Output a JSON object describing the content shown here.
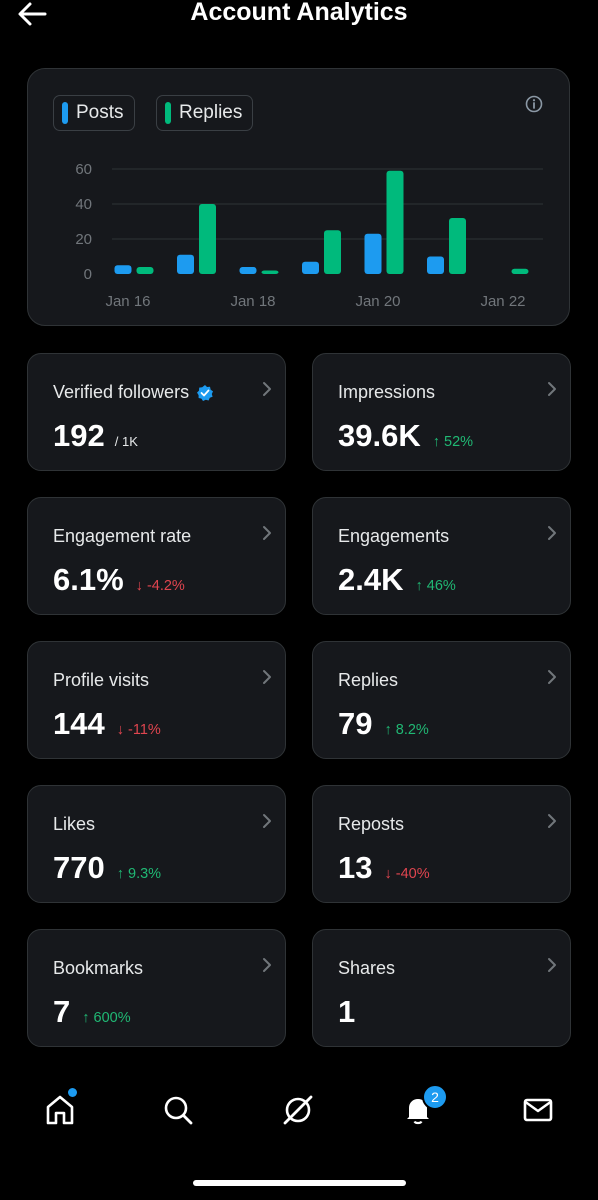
{
  "header": {
    "title": "Account Analytics"
  },
  "legend": [
    {
      "label": "Posts",
      "color": "#1d9bf0"
    },
    {
      "label": "Replies",
      "color": "#00ba7c"
    }
  ],
  "chart_data": {
    "type": "bar",
    "categories": [
      "Jan 16",
      "Jan 17",
      "Jan 18",
      "Jan 19",
      "Jan 20",
      "Jan 21",
      "Jan 22"
    ],
    "tick_labels_x": [
      "Jan 16",
      "Jan 18",
      "Jan 20",
      "Jan 22"
    ],
    "yticks": [
      0,
      20,
      40,
      60
    ],
    "ylim": [
      0,
      60
    ],
    "grid": true,
    "series": [
      {
        "name": "Posts",
        "color": "#1d9bf0",
        "values": [
          5,
          11,
          4,
          7,
          23,
          10,
          0
        ]
      },
      {
        "name": "Replies",
        "color": "#00ba7c",
        "values": [
          4,
          40,
          2,
          25,
          59,
          32,
          3
        ]
      }
    ]
  },
  "stats": [
    {
      "label": "Verified followers",
      "value": "192",
      "sub": "/ 1K",
      "verified": true
    },
    {
      "label": "Impressions",
      "value": "39.6K",
      "change": "↑ 52%",
      "direction": "up"
    },
    {
      "label": "Engagement rate",
      "value": "6.1%",
      "change": "↓ -4.2%",
      "direction": "down"
    },
    {
      "label": "Engagements",
      "value": "2.4K",
      "change": "↑ 46%",
      "direction": "up"
    },
    {
      "label": "Profile visits",
      "value": "144",
      "change": "↓ -11%",
      "direction": "down"
    },
    {
      "label": "Replies",
      "value": "79",
      "change": "↑ 8.2%",
      "direction": "up"
    },
    {
      "label": "Likes",
      "value": "770",
      "change": "↑ 9.3%",
      "direction": "up"
    },
    {
      "label": "Reposts",
      "value": "13",
      "change": "↓ -40%",
      "direction": "down"
    },
    {
      "label": "Bookmarks",
      "value": "7",
      "change": "↑ 600%",
      "direction": "up"
    },
    {
      "label": "Shares",
      "value": "1"
    }
  ],
  "nav": {
    "items": [
      "home-icon",
      "search-icon",
      "grok-icon",
      "notifications-icon",
      "messages-icon"
    ],
    "notifications_count": "2"
  },
  "colors": {
    "accent": "#1d9bf0",
    "positive": "#00ba7c",
    "negative": "#f4212e"
  }
}
